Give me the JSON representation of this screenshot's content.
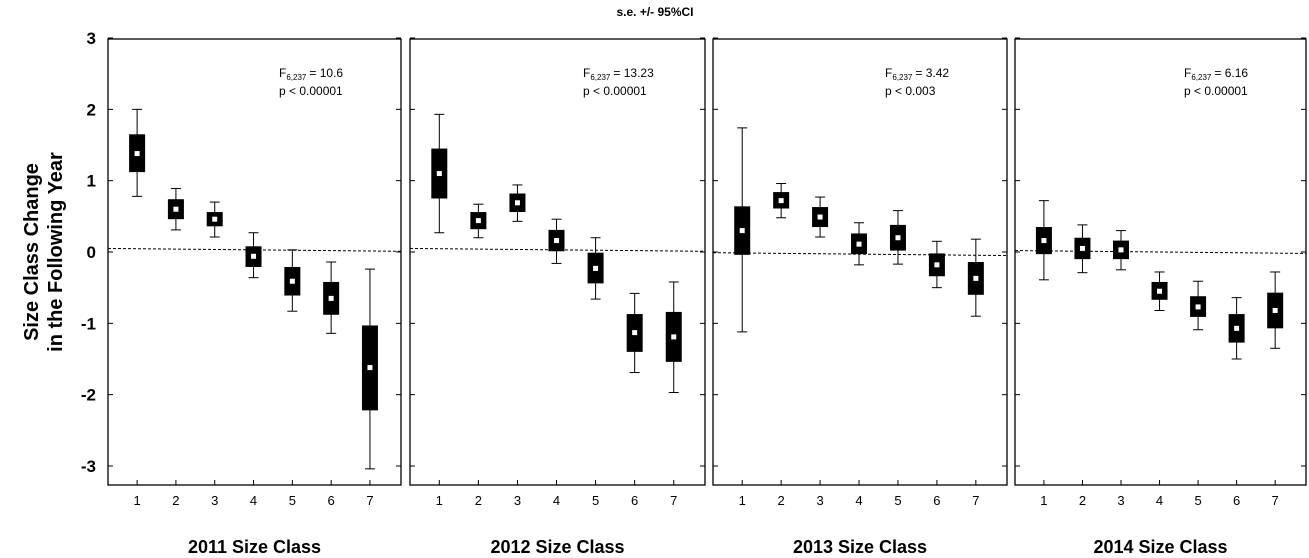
{
  "chart_data": {
    "type": "box",
    "title": "s.e. +/- 95%CI",
    "ylabel_line1": "Size Class Change",
    "ylabel_line2": "in the Following Year",
    "ylim": [
      -3.2,
      3
    ],
    "yticks": [
      "3",
      "2",
      "1",
      "0",
      "-1",
      "-2",
      "-3"
    ],
    "ytick_values": [
      3,
      2,
      1,
      0,
      -1,
      -2,
      -3
    ],
    "categories": [
      "1",
      "2",
      "3",
      "4",
      "5",
      "6",
      "7"
    ],
    "reference_line": "dashed horizontal line near 0",
    "panels": [
      {
        "xlabel": "2011 Size Class",
        "stat_F": "F",
        "stat_F_sub": "6,237",
        "stat_F_val": "= 10.6",
        "stat_p": "p < 0.00001",
        "ref_y": 0.03,
        "boxes": [
          {
            "mean": 1.38,
            "se_low": 1.12,
            "se_high": 1.65,
            "ci_low": 0.78,
            "ci_high": 2.0
          },
          {
            "mean": 0.6,
            "se_low": 0.46,
            "se_high": 0.74,
            "ci_low": 0.31,
            "ci_high": 0.89
          },
          {
            "mean": 0.46,
            "se_low": 0.36,
            "se_high": 0.56,
            "ci_low": 0.21,
            "ci_high": 0.7
          },
          {
            "mean": -0.06,
            "se_low": -0.21,
            "se_high": 0.08,
            "ci_low": -0.36,
            "ci_high": 0.27
          },
          {
            "mean": -0.41,
            "se_low": -0.61,
            "se_high": -0.21,
            "ci_low": -0.83,
            "ci_high": 0.03
          },
          {
            "mean": -0.65,
            "se_low": -0.88,
            "se_high": -0.42,
            "ci_low": -1.14,
            "ci_high": -0.14
          },
          {
            "mean": -1.62,
            "se_low": -2.22,
            "se_high": -1.03,
            "ci_low": -3.04,
            "ci_high": -0.24
          }
        ]
      },
      {
        "xlabel": "2012 Size Class",
        "stat_F": "F",
        "stat_F_sub": "6,237",
        "stat_F_val": "= 13.23",
        "stat_p": "p < 0.00001",
        "ref_y": 0.03,
        "boxes": [
          {
            "mean": 1.1,
            "se_low": 0.75,
            "se_high": 1.45,
            "ci_low": 0.27,
            "ci_high": 1.93
          },
          {
            "mean": 0.44,
            "se_low": 0.32,
            "se_high": 0.56,
            "ci_low": 0.2,
            "ci_high": 0.67
          },
          {
            "mean": 0.69,
            "se_low": 0.56,
            "se_high": 0.82,
            "ci_low": 0.43,
            "ci_high": 0.94
          },
          {
            "mean": 0.16,
            "se_low": 0.01,
            "se_high": 0.31,
            "ci_low": -0.16,
            "ci_high": 0.46
          },
          {
            "mean": -0.23,
            "se_low": -0.44,
            "se_high": -0.01,
            "ci_low": -0.66,
            "ci_high": 0.2
          },
          {
            "mean": -1.13,
            "se_low": -1.4,
            "se_high": -0.87,
            "ci_low": -1.69,
            "ci_high": -0.58
          },
          {
            "mean": -1.19,
            "se_low": -1.54,
            "se_high": -0.84,
            "ci_low": -1.97,
            "ci_high": -0.42
          }
        ]
      },
      {
        "xlabel": "2013 Size Class",
        "stat_F": "F",
        "stat_F_sub": "6,237",
        "stat_F_val": "= 3.42",
        "stat_p": "p < 0.003",
        "ref_y": -0.03,
        "boxes": [
          {
            "mean": 0.3,
            "se_low": -0.04,
            "se_high": 0.64,
            "ci_low": -1.12,
            "ci_high": 1.74
          },
          {
            "mean": 0.72,
            "se_low": 0.61,
            "se_high": 0.84,
            "ci_low": 0.48,
            "ci_high": 0.96
          },
          {
            "mean": 0.49,
            "se_low": 0.35,
            "se_high": 0.63,
            "ci_low": 0.21,
            "ci_high": 0.77
          },
          {
            "mean": 0.11,
            "se_low": -0.03,
            "se_high": 0.26,
            "ci_low": -0.18,
            "ci_high": 0.41
          },
          {
            "mean": 0.2,
            "se_low": 0.02,
            "se_high": 0.38,
            "ci_low": -0.17,
            "ci_high": 0.58
          },
          {
            "mean": -0.18,
            "se_low": -0.34,
            "se_high": -0.02,
            "ci_low": -0.5,
            "ci_high": 0.15
          },
          {
            "mean": -0.37,
            "se_low": -0.6,
            "se_high": -0.14,
            "ci_low": -0.9,
            "ci_high": 0.18
          }
        ]
      },
      {
        "xlabel": "2014 Size Class",
        "stat_F": "F",
        "stat_F_sub": "6,237",
        "stat_F_val": "= 6.16",
        "stat_p": "p < 0.00001",
        "ref_y": 0.0,
        "boxes": [
          {
            "mean": 0.16,
            "se_low": -0.03,
            "se_high": 0.35,
            "ci_low": -0.39,
            "ci_high": 0.72
          },
          {
            "mean": 0.05,
            "se_low": -0.1,
            "se_high": 0.2,
            "ci_low": -0.29,
            "ci_high": 0.38
          },
          {
            "mean": 0.03,
            "se_low": -0.1,
            "se_high": 0.16,
            "ci_low": -0.25,
            "ci_high": 0.3
          },
          {
            "mean": -0.55,
            "se_low": -0.67,
            "se_high": -0.42,
            "ci_low": -0.82,
            "ci_high": -0.28
          },
          {
            "mean": -0.77,
            "se_low": -0.91,
            "se_high": -0.62,
            "ci_low": -1.09,
            "ci_high": -0.41
          },
          {
            "mean": -1.07,
            "se_low": -1.27,
            "se_high": -0.87,
            "ci_low": -1.5,
            "ci_high": -0.64
          },
          {
            "mean": -0.82,
            "se_low": -1.07,
            "se_high": -0.57,
            "ci_low": -1.35,
            "ci_high": -0.28
          }
        ]
      }
    ]
  }
}
